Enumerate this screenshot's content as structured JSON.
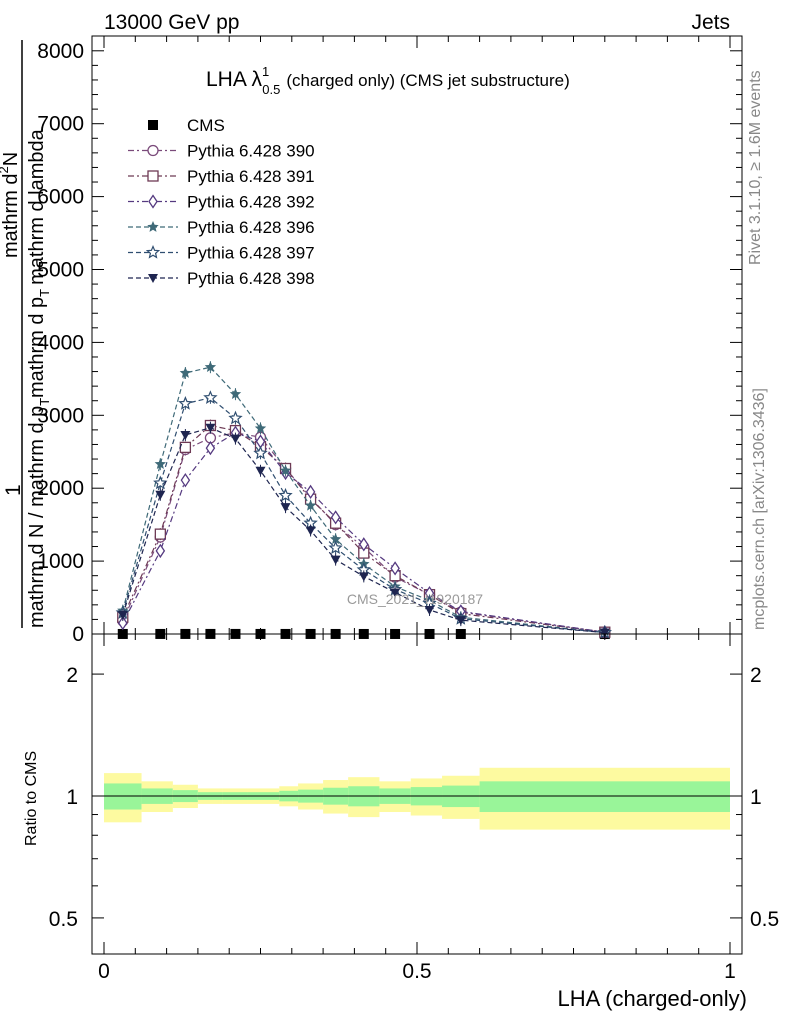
{
  "header": {
    "energy": "13000 GeV pp",
    "category": "Jets"
  },
  "side_labels": {
    "rivet": "Rivet 3.1.10, ≥ 1.6M events",
    "mcplots": "mcplots.cern.ch [arXiv:1306.3436]"
  },
  "watermark": "CMS_2021_I1920187",
  "chart_data": [
    {
      "type": "line",
      "title": "LHA λ",
      "title_sup": "1",
      "title_sub": "0.5",
      "title_suffix": "(charged only) (CMS jet substructure)",
      "ylabel_top": "1",
      "ylabel_numerator": "mathrm d²N",
      "ylabel_denominator": "mathrm d N / mathrm d p_T mathrm d p_T mathrm d lambda",
      "ylabel_num_plain": "mathrm d",
      "ylabel_num_sup": "2",
      "ylabel_num_end": "N",
      "ylabel_line1": "mathrm d N / mathrm d p",
      "ylabel_line1_sub": "T",
      "ylabel_line2": "mathrm d p",
      "ylabel_line2_sub": "T",
      "ylabel_line2_end": "mathrm d lambda",
      "ylim": [
        0,
        8200
      ],
      "yticks": [
        0,
        1000,
        2000,
        3000,
        4000,
        5000,
        6000,
        7000,
        8000
      ],
      "ytick_labels": [
        "0",
        "1000",
        "2000",
        "3000",
        "4000",
        "5000",
        "6000",
        "7000",
        "8000"
      ],
      "xlim": [
        -0.02,
        1.02
      ],
      "legend_position": "top-left",
      "x": [
        0.03,
        0.09,
        0.13,
        0.17,
        0.21,
        0.25,
        0.29,
        0.33,
        0.37,
        0.415,
        0.465,
        0.52,
        0.57,
        0.8
      ],
      "series": [
        {
          "name": "CMS",
          "marker": "square-filled",
          "color": "#000000",
          "values": [
            0.4,
            0.7,
            0.8,
            0.9,
            0.9,
            0.8,
            0.7,
            0.6,
            0.5,
            0.4,
            0.3,
            0.2,
            0.1,
            0.02
          ]
        },
        {
          "name": "Pythia 6.428 390",
          "marker": "circle-open",
          "color": "#7a4a7a",
          "dash": "dashdot",
          "values": [
            180,
            1330,
            2530,
            2690,
            2760,
            2700,
            2270,
            1870,
            1500,
            1190,
            780,
            540,
            300,
            25
          ]
        },
        {
          "name": "Pythia 6.428 391",
          "marker": "square-open",
          "color": "#6e3a55",
          "dash": "dashdot",
          "values": [
            230,
            1370,
            2560,
            2860,
            2790,
            2570,
            2270,
            1850,
            1520,
            1110,
            800,
            540,
            280,
            25
          ]
        },
        {
          "name": "Pythia 6.428 392",
          "marker": "diamond-open",
          "color": "#553a80",
          "dash": "dashdot",
          "values": [
            150,
            1140,
            2110,
            2550,
            2760,
            2640,
            2210,
            1950,
            1600,
            1230,
            900,
            560,
            310,
            25
          ]
        },
        {
          "name": "Pythia 6.428 396",
          "marker": "star-filled",
          "color": "#3f6a78",
          "dash": "dashed",
          "values": [
            320,
            2330,
            3580,
            3660,
            3290,
            2820,
            2240,
            1760,
            1300,
            960,
            650,
            460,
            230,
            20
          ]
        },
        {
          "name": "Pythia 6.428 397",
          "marker": "star-open",
          "color": "#2f4e70",
          "dash": "dashed",
          "values": [
            290,
            2070,
            3160,
            3240,
            2960,
            2480,
            1900,
            1520,
            1180,
            880,
            610,
            420,
            210,
            20
          ]
        },
        {
          "name": "Pythia 6.428 398",
          "marker": "triangle-down-filled",
          "color": "#1e2550",
          "dash": "dashed",
          "values": [
            260,
            1910,
            2730,
            2830,
            2680,
            2240,
            1740,
            1420,
            1020,
            790,
            570,
            330,
            190,
            20
          ]
        }
      ]
    },
    {
      "type": "area",
      "ylabel": "Ratio to CMS",
      "xlabel": "LHA (charged-only)",
      "ylim": [
        0.35,
        2.35
      ],
      "yticks": [
        0.5,
        1,
        2
      ],
      "ytick_labels": [
        "0.5",
        "1",
        "2"
      ],
      "xticks": [
        0,
        0.5,
        1
      ],
      "xtick_labels": [
        "0",
        "0.5",
        "1"
      ],
      "reference_line": 1,
      "band_colors": {
        "inner": "#99f599",
        "outer": "#fdfaa0"
      },
      "bins": [
        {
          "x0": 0.0,
          "x1": 0.06,
          "inner": 0.074,
          "outer": 0.139
        },
        {
          "x0": 0.06,
          "x1": 0.11,
          "inner": 0.044,
          "outer": 0.087
        },
        {
          "x0": 0.11,
          "x1": 0.15,
          "inner": 0.034,
          "outer": 0.066
        },
        {
          "x0": 0.15,
          "x1": 0.19,
          "inner": 0.022,
          "outer": 0.044
        },
        {
          "x0": 0.19,
          "x1": 0.23,
          "inner": 0.022,
          "outer": 0.044
        },
        {
          "x0": 0.23,
          "x1": 0.28,
          "inner": 0.022,
          "outer": 0.044
        },
        {
          "x0": 0.28,
          "x1": 0.31,
          "inner": 0.03,
          "outer": 0.057
        },
        {
          "x0": 0.31,
          "x1": 0.35,
          "inner": 0.037,
          "outer": 0.074
        },
        {
          "x0": 0.35,
          "x1": 0.39,
          "inner": 0.048,
          "outer": 0.095
        },
        {
          "x0": 0.39,
          "x1": 0.44,
          "inner": 0.057,
          "outer": 0.113
        },
        {
          "x0": 0.44,
          "x1": 0.49,
          "inner": 0.044,
          "outer": 0.087
        },
        {
          "x0": 0.49,
          "x1": 0.54,
          "inner": 0.052,
          "outer": 0.105
        },
        {
          "x0": 0.54,
          "x1": 0.6,
          "inner": 0.061,
          "outer": 0.122
        },
        {
          "x0": 0.6,
          "x1": 1.0,
          "inner": 0.087,
          "outer": 0.174
        }
      ]
    }
  ]
}
